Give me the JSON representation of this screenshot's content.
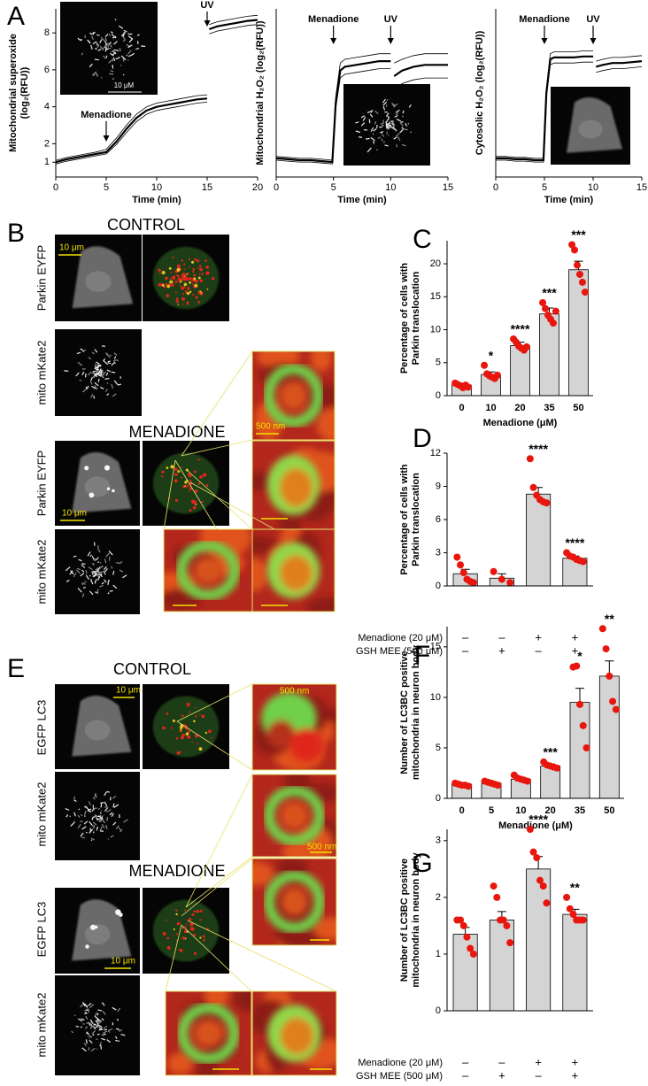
{
  "panel_letters": [
    "A",
    "B",
    "C",
    "D",
    "E",
    "F",
    "G"
  ],
  "micrographs": {
    "B": {
      "conditions": [
        "CONTROL",
        "MENADIONE"
      ],
      "channels": [
        "Parkin EYFP",
        "mito mKate2"
      ],
      "scale_labels": [
        "10 μm",
        "500 nm"
      ]
    },
    "E": {
      "conditions": [
        "CONTROL",
        "MENADIONE"
      ],
      "channels": [
        "EGFP LC3",
        "mito mKate2"
      ],
      "scale_labels": [
        "10 μm",
        "500 nm"
      ]
    }
  },
  "chart_data": [
    {
      "type": "line",
      "ylabel": [
        "Mitochondrial  superoxide",
        "(log₂(RFU))"
      ],
      "xlabel": "Time (min)",
      "inset_scale_label": "10 μM",
      "x": [
        0,
        1,
        2,
        3,
        4,
        5,
        6,
        7,
        8,
        9,
        10,
        11,
        12,
        13,
        14,
        15,
        15.1,
        15.2,
        16,
        17,
        18,
        19,
        20
      ],
      "series": [
        {
          "color": "#000000",
          "width": 0.8,
          "values": [
            0.9,
            1.05,
            1.15,
            1.25,
            1.35,
            1.45,
            1.95,
            2.6,
            3.2,
            3.6,
            3.8,
            3.9,
            4.0,
            4.1,
            4.2,
            4.25,
            null,
            7.95,
            8.1,
            8.2,
            8.3,
            8.4,
            8.45
          ]
        },
        {
          "color": "#000000",
          "width": 2.2,
          "values": [
            1.0,
            1.15,
            1.25,
            1.35,
            1.45,
            1.55,
            2.1,
            2.8,
            3.4,
            3.8,
            4.0,
            4.1,
            4.2,
            4.3,
            4.4,
            4.45,
            null,
            8.2,
            8.35,
            8.45,
            8.55,
            8.65,
            8.7
          ]
        },
        {
          "color": "#000000",
          "width": 0.8,
          "values": [
            1.1,
            1.25,
            1.35,
            1.45,
            1.55,
            1.7,
            2.3,
            3.0,
            3.6,
            4.0,
            4.2,
            4.3,
            4.4,
            4.5,
            4.6,
            4.65,
            null,
            8.45,
            8.6,
            8.7,
            8.8,
            8.9,
            8.95
          ]
        }
      ],
      "annotations": [
        {
          "text": "Menadione",
          "x": 5
        },
        {
          "text": "UV",
          "x": 15
        }
      ],
      "xlim": [
        0,
        20
      ],
      "xticks": [
        0,
        5,
        10,
        15,
        20
      ],
      "ylim": [
        0.2,
        9.3
      ],
      "yticks": [
        1,
        2,
        4,
        6,
        8
      ]
    },
    {
      "type": "line",
      "ylabel": [
        "Mitochondrial H₂O₂ (log₂(RFU))"
      ],
      "xlabel": "Time (min)",
      "x": [
        0,
        1,
        2,
        3,
        4,
        4.9,
        5.2,
        5.6,
        6,
        7,
        8,
        9,
        10,
        10.1,
        10.3,
        11,
        12,
        13,
        14,
        15
      ],
      "series": [
        {
          "color": "#000000",
          "width": 0.8,
          "values": [
            0.9,
            0.85,
            0.8,
            0.8,
            0.75,
            0.7,
            3.7,
            5.3,
            5.5,
            5.6,
            5.7,
            5.8,
            5.8,
            null,
            4.7,
            5.0,
            5.2,
            5.3,
            5.3,
            5.3
          ]
        },
        {
          "color": "#000000",
          "width": 2.2,
          "values": [
            1.0,
            0.95,
            0.9,
            0.9,
            0.85,
            0.8,
            4.0,
            5.7,
            5.9,
            6.0,
            6.1,
            6.2,
            6.2,
            null,
            5.4,
            5.7,
            5.9,
            6.0,
            6.0,
            6.0
          ]
        },
        {
          "color": "#000000",
          "width": 0.8,
          "values": [
            1.1,
            1.05,
            1.0,
            1.0,
            0.95,
            0.9,
            4.3,
            6.1,
            6.3,
            6.4,
            6.5,
            6.6,
            6.6,
            null,
            6.1,
            6.3,
            6.5,
            6.6,
            6.6,
            6.6
          ]
        }
      ],
      "annotations": [
        {
          "text": "Menadione",
          "x": 5
        },
        {
          "text": "UV",
          "x": 10
        }
      ],
      "xlim": [
        0,
        15
      ],
      "xticks": [
        0,
        5,
        10,
        15
      ],
      "ylim": [
        0,
        9
      ]
    },
    {
      "type": "line",
      "ylabel": [
        "Cytosolic H₂O₂ (log₂(RFU))"
      ],
      "xlabel": "Time (min)",
      "x": [
        0,
        1,
        2,
        3,
        4,
        4.9,
        5.2,
        5.6,
        6,
        7,
        8,
        9,
        10,
        10.1,
        10.3,
        11,
        12,
        13,
        14,
        15
      ],
      "series": [
        {
          "color": "#000000",
          "width": 0.8,
          "values": [
            0.9,
            0.9,
            0.85,
            0.85,
            0.8,
            0.8,
            4.3,
            6.0,
            6.1,
            6.1,
            6.1,
            6.15,
            6.15,
            null,
            5.6,
            5.7,
            5.8,
            5.8,
            5.85,
            5.9
          ]
        },
        {
          "color": "#000000",
          "width": 2.2,
          "values": [
            1.0,
            1.0,
            0.95,
            0.95,
            0.9,
            0.9,
            4.5,
            6.3,
            6.4,
            6.4,
            6.4,
            6.45,
            6.45,
            null,
            5.9,
            6.0,
            6.1,
            6.1,
            6.15,
            6.2
          ]
        },
        {
          "color": "#000000",
          "width": 0.8,
          "values": [
            1.1,
            1.1,
            1.05,
            1.05,
            1.0,
            1.0,
            4.7,
            6.6,
            6.7,
            6.7,
            6.7,
            6.75,
            6.75,
            null,
            6.2,
            6.3,
            6.4,
            6.4,
            6.45,
            6.5
          ]
        }
      ],
      "annotations": [
        {
          "text": "Menadione",
          "x": 5
        },
        {
          "text": "UV",
          "x": 10
        }
      ],
      "xlim": [
        0,
        15
      ],
      "xticks": [
        0,
        5,
        10,
        15
      ],
      "ylim": [
        0,
        9
      ]
    },
    {
      "type": "bar",
      "ylabel": [
        "Percentage of cells with",
        "Parkin translocation"
      ],
      "xlabel": "Menadione (μM)",
      "categories": [
        "0",
        "10",
        "20",
        "35",
        "50"
      ],
      "values": [
        1.6,
        3.2,
        7.6,
        12.4,
        19.1
      ],
      "errors": [
        0.3,
        0.4,
        0.5,
        0.9,
        1.3
      ],
      "points": [
        [
          1.9,
          1.7,
          1.5,
          1.2,
          1.6,
          1.3
        ],
        [
          4.6,
          3.3,
          3.0,
          2.8,
          2.6,
          3.1
        ],
        [
          8.6,
          8.1,
          7.5,
          7.2,
          6.9,
          7.4
        ],
        [
          14.1,
          13.2,
          12.2,
          11.6,
          11.0,
          12.8
        ],
        [
          22.9,
          22.1,
          19.8,
          18.4,
          17.2,
          15.7
        ]
      ],
      "significance": [
        null,
        "*",
        "****",
        "***",
        "***"
      ],
      "color": "#d4d4d4",
      "point_color": "#e8160c",
      "ylim": [
        0,
        23.5
      ],
      "yticks": [
        0,
        5,
        10,
        15,
        20
      ]
    },
    {
      "type": "bar",
      "ylabel": [
        "Percentage of cells with",
        "Parkin translocation"
      ],
      "categories": [
        null,
        null,
        null,
        null
      ],
      "values": [
        1.1,
        0.7,
        8.3,
        2.5
      ],
      "errors": [
        0.4,
        0.4,
        0.6,
        0.2
      ],
      "points": [
        [
          2.6,
          1.9,
          1.2,
          0.6,
          0.4,
          0.3
        ],
        [
          1.3,
          0.6,
          0.3
        ],
        [
          11.5,
          8.9,
          8.2,
          7.8,
          7.6,
          7.5
        ],
        [
          3.0,
          2.7,
          2.6,
          2.4,
          2.3,
          2.2
        ]
      ],
      "significance": [
        null,
        null,
        "****",
        "****"
      ],
      "treatments": [
        {
          "label": "Menadione (20 μM)",
          "signs": [
            "–",
            "–",
            "+",
            "+"
          ]
        },
        {
          "label": "GSH MEE (500 μM)",
          "signs": [
            "–",
            "+",
            "–",
            "+"
          ]
        }
      ],
      "color": "#d4d4d4",
      "point_color": "#e8160c",
      "ylim": [
        0,
        12
      ],
      "yticks": [
        0,
        3,
        6,
        9,
        12
      ]
    },
    {
      "type": "bar",
      "ylabel": [
        "Number of LC3BC positive",
        "mitochondria in neuron body"
      ],
      "xlabel": "Menadione  (μM)",
      "categories": [
        "0",
        "5",
        "10",
        "20",
        "35",
        "50"
      ],
      "values": [
        1.4,
        1.5,
        1.9,
        3.2,
        9.5,
        12.1
      ],
      "errors": [
        0.1,
        0.1,
        0.2,
        0.2,
        1.4,
        1.5
      ],
      "points": [
        [
          1.5,
          1.4,
          1.3,
          1.3,
          1.2
        ],
        [
          1.7,
          1.6,
          1.5,
          1.4,
          1.3
        ],
        [
          2.3,
          2.0,
          1.9,
          1.8,
          1.7
        ],
        [
          3.6,
          3.3,
          3.2,
          3.1,
          3.0
        ],
        [
          13.0,
          13.1,
          9.3,
          7.2,
          5.0
        ],
        [
          16.8,
          14.8,
          12.1,
          9.6,
          8.8
        ]
      ],
      "significance": [
        null,
        null,
        null,
        "***",
        "*",
        "**"
      ],
      "color": "#d4d4d4",
      "point_color": "#e8160c",
      "ylim": [
        0,
        17
      ],
      "yticks": [
        0,
        5,
        10,
        15
      ]
    },
    {
      "type": "bar",
      "ylabel": [
        "Number of LC3BC positive",
        "mitochondria in neuron body"
      ],
      "categories": [
        null,
        null,
        null,
        null
      ],
      "values": [
        1.35,
        1.6,
        2.5,
        1.7
      ],
      "errors": [
        0.12,
        0.15,
        0.22,
        0.09
      ],
      "points": [
        [
          1.6,
          1.6,
          1.5,
          1.3,
          1.1,
          1.0
        ],
        [
          2.2,
          2.0,
          1.6,
          1.6,
          1.5,
          1.2
        ],
        [
          3.2,
          2.8,
          2.7,
          2.3,
          2.2,
          1.9
        ],
        [
          2.0,
          1.8,
          1.7,
          1.6,
          1.6,
          1.6
        ]
      ],
      "significance": [
        null,
        null,
        "****",
        "**"
      ],
      "treatments": [
        {
          "label": "Menadione (20 μM)",
          "signs": [
            "–",
            "–",
            "+",
            "+"
          ]
        },
        {
          "label": "GSH MEE (500 μM)",
          "signs": [
            "–",
            "+",
            "–",
            "+"
          ]
        }
      ],
      "color": "#d4d4d4",
      "point_color": "#e8160c",
      "ylim": [
        0,
        3.2
      ],
      "yticks": [
        0,
        1,
        2,
        3
      ]
    }
  ]
}
